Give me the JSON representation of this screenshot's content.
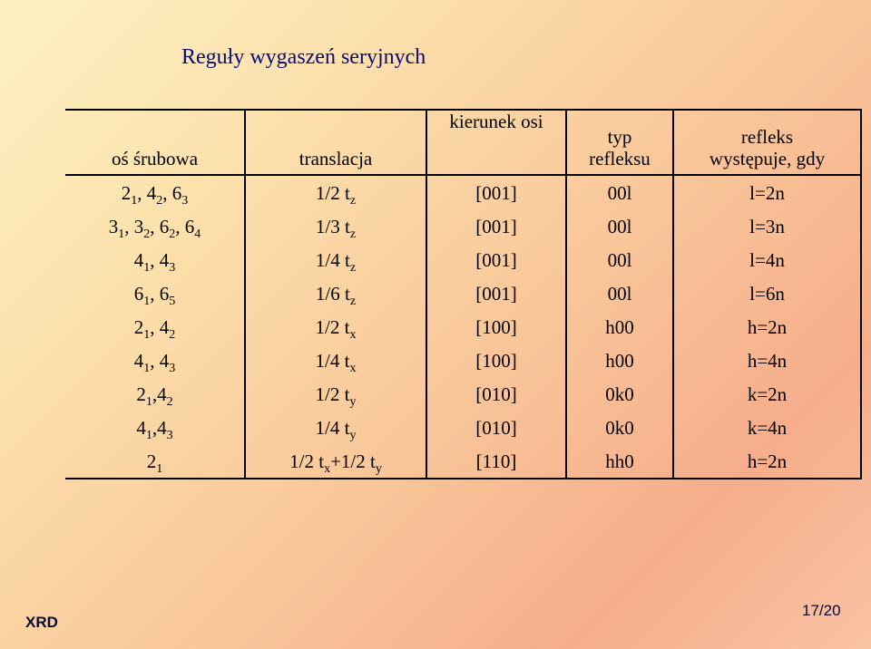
{
  "title": "Reguły wygaszeń seryjnych",
  "headers": {
    "axis": "oś śrubowa",
    "translation": "translacja",
    "direction": "kierunek osi",
    "reflection_type_1": "typ",
    "reflection_type_2": "refleksu",
    "condition_1": "refleks",
    "condition_2": "występuje, gdy"
  },
  "rows": [
    {
      "axis": [
        [
          "2",
          "1"
        ],
        [
          ", 4",
          "2"
        ],
        [
          ", 6",
          "3"
        ]
      ],
      "translation": [
        [
          "1/2 t",
          "z"
        ]
      ],
      "direction": "[001]",
      "type": "00l",
      "condition": "l=2n"
    },
    {
      "axis": [
        [
          "3",
          "1"
        ],
        [
          ", 3",
          "2"
        ],
        [
          ", 6",
          "2"
        ],
        [
          ", 6",
          "4"
        ]
      ],
      "translation": [
        [
          "1/3 t",
          "z"
        ]
      ],
      "direction": "[001]",
      "type": "00l",
      "condition": "l=3n"
    },
    {
      "axis": [
        [
          "4",
          "1"
        ],
        [
          ", 4",
          "3"
        ]
      ],
      "translation": [
        [
          "1/4 t",
          "z"
        ]
      ],
      "direction": "[001]",
      "type": "00l",
      "condition": "l=4n"
    },
    {
      "axis": [
        [
          "6",
          "1"
        ],
        [
          ", 6",
          "5"
        ]
      ],
      "translation": [
        [
          "1/6 t",
          "z"
        ]
      ],
      "direction": "[001]",
      "type": "00l",
      "condition": "l=6n"
    },
    {
      "axis": [
        [
          "2",
          "1"
        ],
        [
          ", 4",
          "2"
        ]
      ],
      "translation": [
        [
          "1/2 t",
          "x"
        ]
      ],
      "direction": "[100]",
      "type": "h00",
      "condition": "h=2n"
    },
    {
      "axis": [
        [
          "4",
          "1"
        ],
        [
          ", 4",
          "3"
        ]
      ],
      "translation": [
        [
          "1/4 t",
          "x"
        ]
      ],
      "direction": "[100]",
      "type": "h00",
      "condition": "h=4n"
    },
    {
      "axis": [
        [
          "2",
          "1"
        ],
        [
          ",4",
          "2"
        ]
      ],
      "translation": [
        [
          "1/2 t",
          "y"
        ]
      ],
      "direction": "[010]",
      "type": "0k0",
      "condition": "k=2n"
    },
    {
      "axis": [
        [
          "4",
          "1"
        ],
        [
          ",4",
          "3"
        ]
      ],
      "translation": [
        [
          "1/4 t",
          "y"
        ]
      ],
      "direction": "[010]",
      "type": "0k0",
      "condition": "k=4n"
    },
    {
      "axis": [
        [
          "2",
          "1"
        ]
      ],
      "translation": [
        [
          "1/2 t",
          "x"
        ],
        [
          "+1/2 t",
          "y"
        ]
      ],
      "direction": "[110]",
      "type": "hh0",
      "condition": "h=2n"
    }
  ],
  "footer": {
    "left": "XRD",
    "page": "17/20"
  }
}
